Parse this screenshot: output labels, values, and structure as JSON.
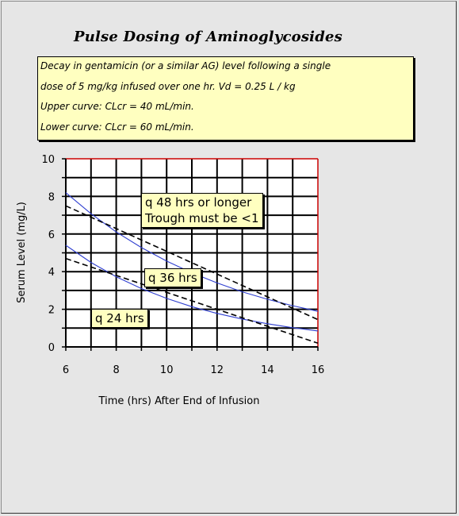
{
  "title": "Pulse Dosing of Aminoglycosides",
  "note_lines": [
    "Decay in gentamicin (or a similar AG) level following a single",
    "dose of 5 mg/kg infused over one hr.   Vd = 0.25 L / kg",
    "Upper curve: CLcr = 40 mL/min.",
    "Lower curve: CLcr = 60 mL/min."
  ],
  "labels": {
    "q48_line1": "q 48 hrs or longer",
    "q48_line2": "Trough must be <1",
    "q36": "q 36 hrs",
    "q24": "q 24 hrs"
  },
  "chart_data": {
    "type": "line",
    "xlabel": "Time (hrs) After End of Infusion",
    "ylabel": "Serum Level (mg/L)",
    "xlim": [
      6,
      16
    ],
    "ylim": [
      0,
      10
    ],
    "x_ticks": [
      6,
      8,
      10,
      12,
      14,
      16
    ],
    "y_ticks": [
      0,
      2,
      4,
      6,
      8,
      10
    ],
    "grid": true,
    "colors": {
      "curves": "#2f3fd0",
      "dashed": "#000000",
      "grid": "#000000",
      "plot_border": "#cc0000"
    },
    "series": [
      {
        "style": "solid",
        "x": [
          6,
          7,
          8,
          9,
          10,
          11,
          12,
          13,
          14,
          15,
          16
        ],
        "y": [
          8.2,
          7.08,
          6.11,
          5.28,
          4.56,
          3.94,
          3.4,
          2.93,
          2.53,
          2.19,
          1.89
        ]
      },
      {
        "style": "solid",
        "x": [
          6,
          7,
          8,
          9,
          10,
          11,
          12,
          13,
          14,
          15,
          16
        ],
        "y": [
          5.4,
          4.49,
          3.73,
          3.1,
          2.58,
          2.14,
          1.78,
          1.48,
          1.23,
          1.02,
          0.85
        ]
      },
      {
        "style": "dashed",
        "x": [
          6,
          16
        ],
        "y": [
          7.5,
          1.45
        ]
      },
      {
        "style": "dashed",
        "x": [
          6,
          16
        ],
        "y": [
          4.7,
          0.2
        ]
      }
    ]
  }
}
